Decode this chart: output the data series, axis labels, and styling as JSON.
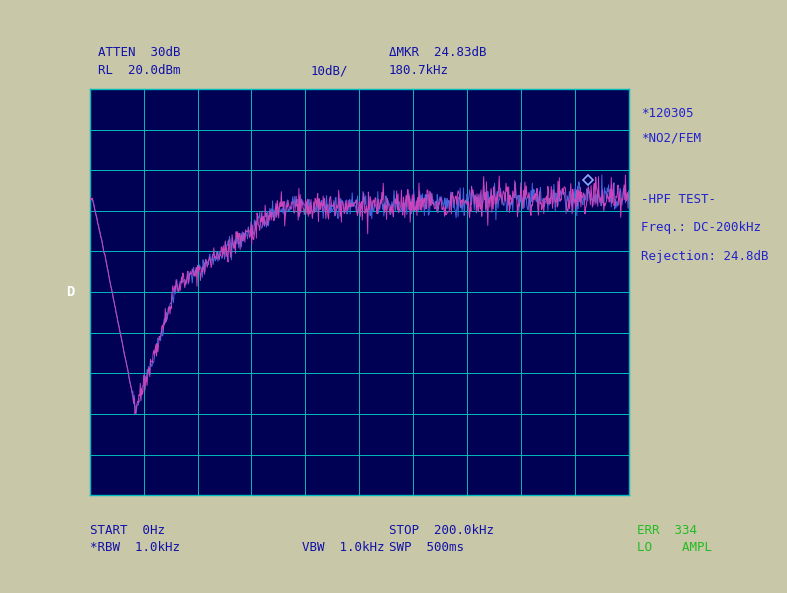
{
  "background_color": "#c8c8a8",
  "plot_bg_color": "#000055",
  "grid_color": "#00bbbb",
  "line_color_magenta": "#cc44bb",
  "line_color_blue": "#4466dd",
  "marker_color": "#88aaff",
  "annotation_color": "#2222cc",
  "green_text_color": "#22bb22",
  "header_color": "#1111aa",
  "figsize": [
    7.87,
    5.93
  ],
  "dpi": 100,
  "top_labels": {
    "atten": "ATTEN  30dB",
    "rl": "RL  20.0dBm",
    "scale": "10dB/",
    "delta_mkr": "ΔMKR  24.83dB",
    "freq": "180.7kHz"
  },
  "right_annotations": {
    "line1": "*120305",
    "line2": "*NO2/FEM",
    "line4": "-HPF TEST-",
    "line5": "Freq.: DC-200kHz",
    "line6": "Rejection: 24.8dB"
  },
  "bottom_labels": {
    "start": "START  0Hz",
    "rbw": "*RBW  1.0kHz",
    "vbw": "VBW  1.0kHz",
    "stop": "STOP  200.0kHz",
    "swp": "SWP  500ms",
    "err": "ERR  334",
    "lo": "LO    AMPL"
  },
  "y_label_D": "D",
  "grid_nx": 10,
  "grid_ny": 10
}
